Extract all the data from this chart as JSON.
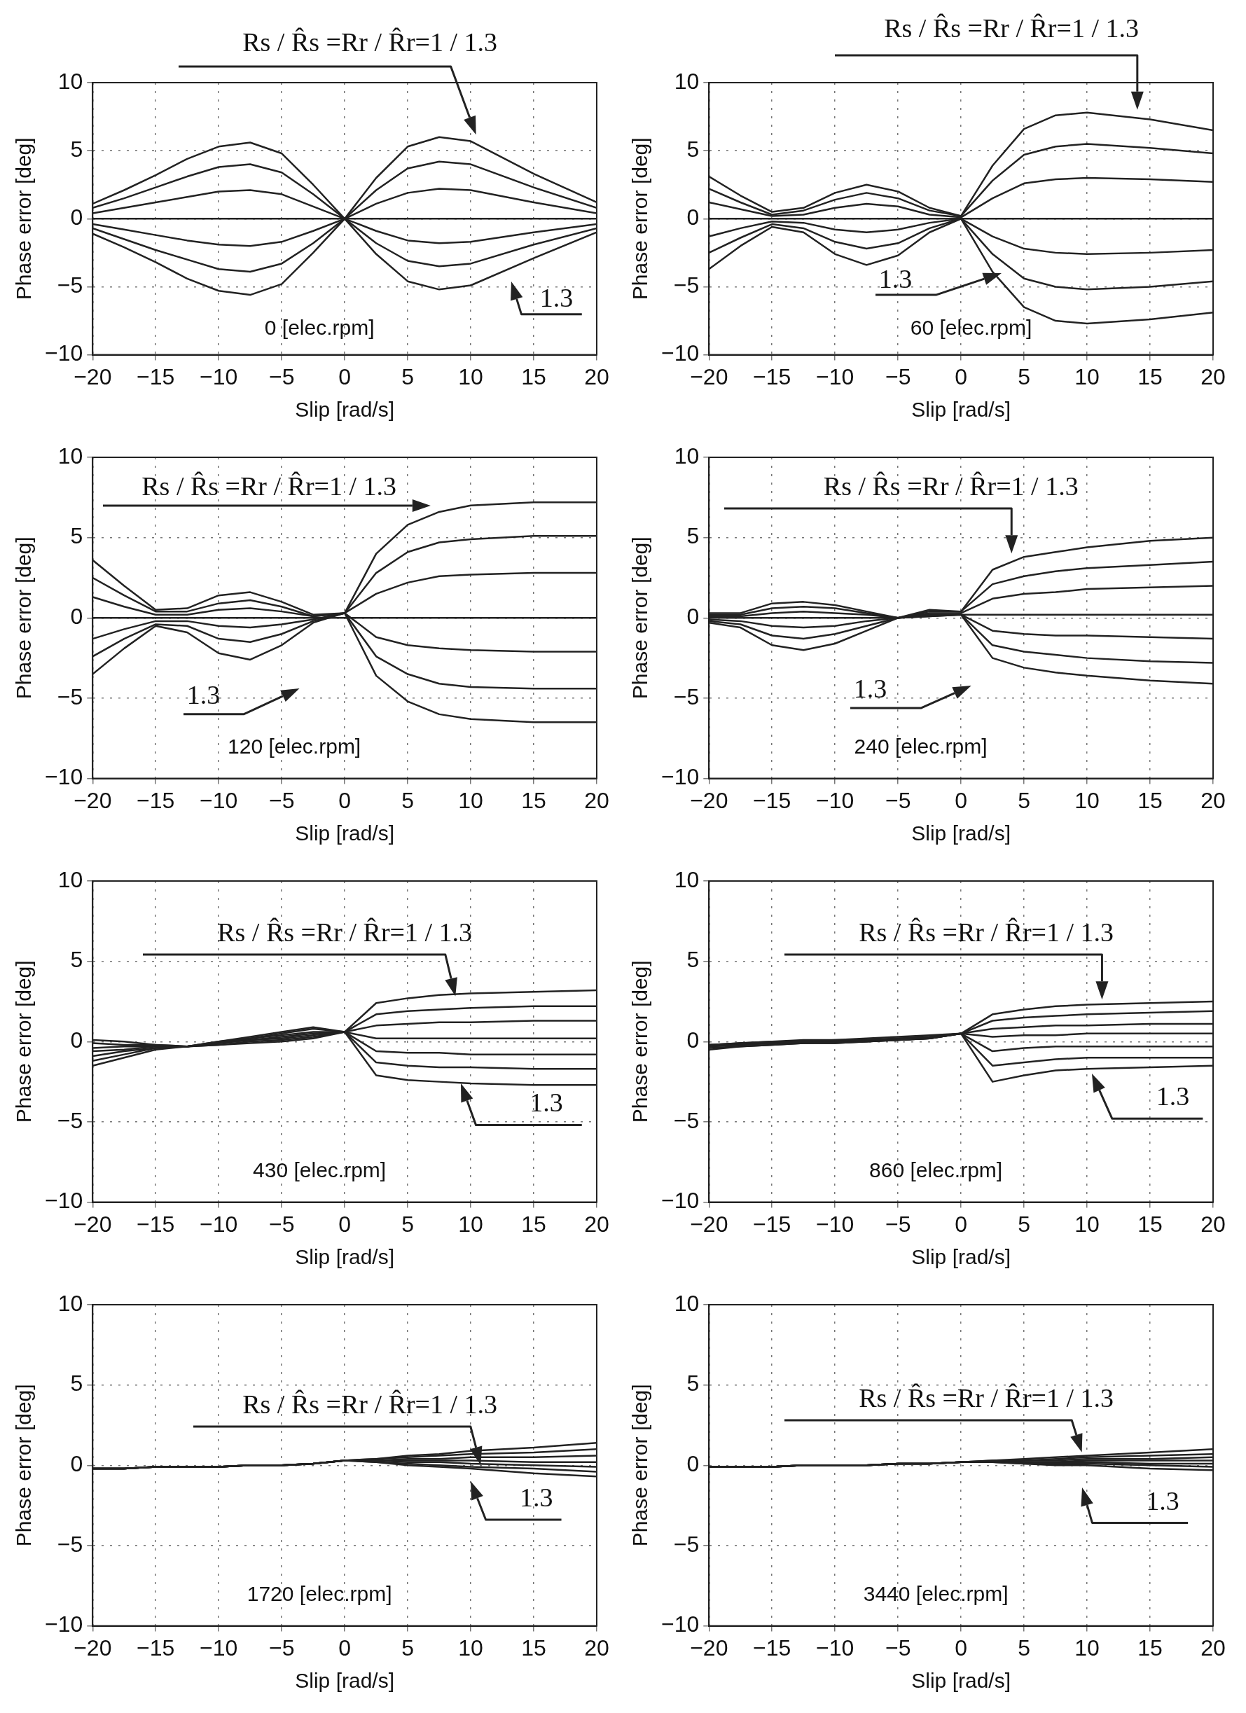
{
  "chart_data": [
    {
      "type": "line",
      "xlabel": "Slip [rad/s]",
      "ylabel": "Phase error [deg]",
      "xlim": [
        -20,
        20
      ],
      "ylim": [
        -10,
        10
      ],
      "xticks": [
        -20,
        -15,
        -10,
        -5,
        0,
        5,
        10,
        15,
        20
      ],
      "yticks": [
        -10,
        -5,
        0,
        5,
        10
      ],
      "grid": true,
      "marker": "none",
      "line_style": "solid",
      "annotations": [
        "Rs / R̂s =Rr / R̂r=1 / 1.3",
        "1.3",
        "0 [elec.rpm]"
      ],
      "x": [
        -20,
        -17.5,
        -15,
        -12.5,
        -10,
        -7.5,
        -5,
        -2.5,
        0,
        2.5,
        5,
        7.5,
        10,
        15,
        20
      ],
      "series": [
        {
          "color": "#222222",
          "values": [
            1.1,
            2.1,
            3.2,
            4.4,
            5.3,
            5.6,
            4.8,
            2.5,
            0,
            3,
            5.3,
            6,
            5.7,
            3.3,
            1.2
          ]
        },
        {
          "color": "#222222",
          "values": [
            0.8,
            1.5,
            2.3,
            3.1,
            3.8,
            4,
            3.4,
            1.8,
            0,
            2.1,
            3.7,
            4.2,
            4,
            2.3,
            0.8
          ]
        },
        {
          "color": "#222222",
          "values": [
            0.4,
            0.8,
            1.2,
            1.6,
            2,
            2.1,
            1.8,
            0.9,
            0,
            1.1,
            1.9,
            2.2,
            2.1,
            1.2,
            0.4
          ]
        },
        {
          "color": "#222222",
          "values": [
            0,
            0,
            0,
            0,
            0,
            0,
            0,
            0,
            0,
            0,
            0,
            0,
            0,
            0,
            0
          ]
        },
        {
          "color": "#222222",
          "values": [
            -0.4,
            -0.8,
            -1.2,
            -1.6,
            -1.9,
            -2,
            -1.7,
            -0.9,
            0,
            -0.9,
            -1.6,
            -1.8,
            -1.7,
            -1,
            -0.4
          ]
        },
        {
          "color": "#222222",
          "values": [
            -0.7,
            -1.5,
            -2.3,
            -3,
            -3.7,
            -3.9,
            -3.3,
            -1.8,
            0,
            -1.8,
            -3.1,
            -3.5,
            -3.3,
            -1.9,
            -0.7
          ]
        },
        {
          "color": "#222222",
          "values": [
            -1.1,
            -2.1,
            -3.2,
            -4.4,
            -5.3,
            -5.6,
            -4.8,
            -2.5,
            0,
            -2.6,
            -4.6,
            -5.2,
            -4.9,
            -2.9,
            -1
          ]
        }
      ]
    },
    {
      "type": "line",
      "xlabel": "Slip [rad/s]",
      "ylabel": "Phase error [deg]",
      "xlim": [
        -20,
        20
      ],
      "ylim": [
        -10,
        10
      ],
      "xticks": [
        -20,
        -15,
        -10,
        -5,
        0,
        5,
        10,
        15,
        20
      ],
      "yticks": [
        -10,
        -5,
        0,
        5,
        10
      ],
      "grid": true,
      "marker": "none",
      "line_style": "solid",
      "annotations": [
        "Rs / R̂s =Rr / R̂r=1 / 1.3",
        "1.3",
        "60 [elec.rpm]"
      ],
      "x": [
        -20,
        -17.5,
        -15,
        -12.5,
        -10,
        -7.5,
        -5,
        -2.5,
        0,
        2.5,
        5,
        7.5,
        10,
        15,
        20
      ],
      "series": [
        {
          "color": "#222222",
          "values": [
            3.1,
            1.7,
            0.5,
            0.8,
            1.9,
            2.5,
            2,
            0.8,
            0.2,
            3.9,
            6.6,
            7.6,
            7.8,
            7.3,
            6.5
          ]
        },
        {
          "color": "#222222",
          "values": [
            2.2,
            1.2,
            0.3,
            0.6,
            1.4,
            1.9,
            1.5,
            0.6,
            0.2,
            2.8,
            4.7,
            5.3,
            5.5,
            5.2,
            4.8
          ]
        },
        {
          "color": "#222222",
          "values": [
            1.2,
            0.7,
            0.2,
            0.3,
            0.8,
            1.1,
            0.9,
            0.3,
            0.1,
            1.5,
            2.6,
            2.9,
            3,
            2.9,
            2.7
          ]
        },
        {
          "color": "#222222",
          "values": [
            0,
            0,
            0,
            0,
            0,
            0,
            0,
            0,
            0,
            0,
            0,
            0,
            0,
            0,
            0
          ]
        },
        {
          "color": "#222222",
          "values": [
            -1.3,
            -0.7,
            -0.2,
            -0.3,
            -0.8,
            -1,
            -0.8,
            -0.3,
            0,
            -1.3,
            -2.2,
            -2.5,
            -2.6,
            -2.5,
            -2.3
          ]
        },
        {
          "color": "#222222",
          "values": [
            -2.5,
            -1.4,
            -0.4,
            -0.7,
            -1.7,
            -2.2,
            -1.8,
            -0.7,
            0,
            -2.6,
            -4.4,
            -5,
            -5.2,
            -5,
            -4.6
          ]
        },
        {
          "color": "#222222",
          "values": [
            -3.7,
            -2,
            -0.6,
            -1,
            -2.6,
            -3.4,
            -2.7,
            -1,
            0,
            -3.9,
            -6.5,
            -7.5,
            -7.7,
            -7.4,
            -6.9
          ]
        }
      ]
    },
    {
      "type": "line",
      "xlabel": "Slip [rad/s]",
      "ylabel": "Phase error [deg]",
      "xlim": [
        -20,
        20
      ],
      "ylim": [
        -10,
        10
      ],
      "xticks": [
        -20,
        -15,
        -10,
        -5,
        0,
        5,
        10,
        15,
        20
      ],
      "yticks": [
        -10,
        -5,
        0,
        5,
        10
      ],
      "grid": true,
      "marker": "none",
      "line_style": "solid",
      "annotations": [
        "Rs / R̂s =Rr / R̂r=1 / 1.3",
        "1.3",
        "120 [elec.rpm]"
      ],
      "x": [
        -20,
        -17.5,
        -15,
        -12.5,
        -10,
        -7.5,
        -5,
        -2.5,
        0,
        2.5,
        5,
        7.5,
        10,
        15,
        20
      ],
      "series": [
        {
          "color": "#222222",
          "values": [
            3.6,
            2,
            0.5,
            0.6,
            1.4,
            1.6,
            1,
            0.2,
            0.3,
            4,
            5.8,
            6.6,
            7,
            7.2,
            7.2
          ]
        },
        {
          "color": "#222222",
          "values": [
            2.5,
            1.4,
            0.4,
            0.4,
            0.9,
            1.1,
            0.7,
            0.1,
            0.3,
            2.8,
            4.1,
            4.7,
            4.9,
            5.1,
            5.1
          ]
        },
        {
          "color": "#222222",
          "values": [
            1.3,
            0.7,
            0.2,
            0.2,
            0.5,
            0.6,
            0.4,
            0.1,
            0.3,
            1.5,
            2.2,
            2.6,
            2.7,
            2.8,
            2.8
          ]
        },
        {
          "color": "#222222",
          "values": [
            0,
            0,
            0,
            0,
            0,
            0,
            0,
            0,
            0,
            0,
            0,
            0,
            0,
            0,
            0
          ]
        },
        {
          "color": "#222222",
          "values": [
            -1.3,
            -0.7,
            -0.2,
            -0.2,
            -0.5,
            -0.6,
            -0.4,
            -0.1,
            0.3,
            -1.2,
            -1.7,
            -1.9,
            -2,
            -2.1,
            -2.1
          ]
        },
        {
          "color": "#222222",
          "values": [
            -2.4,
            -1.3,
            -0.4,
            -0.5,
            -1.3,
            -1.5,
            -1,
            -0.2,
            0.3,
            -2.4,
            -3.5,
            -4.1,
            -4.3,
            -4.4,
            -4.4
          ]
        },
        {
          "color": "#222222",
          "values": [
            -3.5,
            -1.9,
            -0.5,
            -0.9,
            -2.2,
            -2.6,
            -1.7,
            -0.3,
            0.3,
            -3.6,
            -5.2,
            -6,
            -6.3,
            -6.5,
            -6.5
          ]
        }
      ]
    },
    {
      "type": "line",
      "xlabel": "Slip [rad/s]",
      "ylabel": "Phase error [deg]",
      "xlim": [
        -20,
        20
      ],
      "ylim": [
        -10,
        10
      ],
      "xticks": [
        -20,
        -15,
        -10,
        -5,
        0,
        5,
        10,
        15,
        20
      ],
      "yticks": [
        -10,
        -5,
        0,
        5,
        10
      ],
      "grid": true,
      "marker": "none",
      "line_style": "solid",
      "annotations": [
        "Rs / R̂s =Rr / R̂r=1 / 1.3",
        "1.3",
        "240 [elec.rpm]"
      ],
      "x": [
        -20,
        -17.5,
        -15,
        -12.5,
        -10,
        -7.5,
        -5,
        -2.5,
        0,
        2.5,
        5,
        7.5,
        10,
        15,
        20
      ],
      "series": [
        {
          "color": "#222222",
          "values": [
            0.3,
            0.3,
            0.9,
            1,
            0.8,
            0.4,
            0,
            0.5,
            0.4,
            3,
            3.8,
            4.1,
            4.4,
            4.8,
            5
          ]
        },
        {
          "color": "#222222",
          "values": [
            0.2,
            0.2,
            0.6,
            0.7,
            0.6,
            0.3,
            0,
            0.4,
            0.4,
            2.1,
            2.6,
            2.9,
            3.1,
            3.3,
            3.5
          ]
        },
        {
          "color": "#222222",
          "values": [
            0.1,
            0.1,
            0.3,
            0.4,
            0.3,
            0.2,
            0,
            0.3,
            0.3,
            1.2,
            1.5,
            1.6,
            1.8,
            1.9,
            2
          ]
        },
        {
          "color": "#222222",
          "values": [
            0,
            0,
            0,
            0,
            0,
            0,
            0,
            0.2,
            0.2,
            0.2,
            0.2,
            0.2,
            0.2,
            0.2,
            0.2
          ]
        },
        {
          "color": "#222222",
          "values": [
            -0.1,
            -0.2,
            -0.5,
            -0.6,
            -0.5,
            -0.2,
            0,
            0.2,
            0.2,
            -0.8,
            -1,
            -1.1,
            -1.1,
            -1.2,
            -1.3
          ]
        },
        {
          "color": "#222222",
          "values": [
            -0.2,
            -0.4,
            -1.1,
            -1.3,
            -1,
            -0.5,
            0,
            0.1,
            0.2,
            -1.7,
            -2.1,
            -2.3,
            -2.5,
            -2.7,
            -2.8
          ]
        },
        {
          "color": "#222222",
          "values": [
            -0.3,
            -0.6,
            -1.7,
            -2,
            -1.6,
            -0.8,
            0,
            0.1,
            0.2,
            -2.5,
            -3.1,
            -3.4,
            -3.6,
            -3.9,
            -4.1
          ]
        }
      ]
    },
    {
      "type": "line",
      "xlabel": "Slip [rad/s]",
      "ylabel": "Phase error [deg]",
      "xlim": [
        -20,
        20
      ],
      "ylim": [
        -10,
        10
      ],
      "xticks": [
        -20,
        -15,
        -10,
        -5,
        0,
        5,
        10,
        15,
        20
      ],
      "yticks": [
        -10,
        -5,
        0,
        5,
        10
      ],
      "grid": true,
      "marker": "none",
      "line_style": "solid",
      "annotations": [
        "Rs / R̂s =Rr / R̂r=1 / 1.3",
        "1.3",
        "430 [elec.rpm]"
      ],
      "x": [
        -20,
        -17.5,
        -15,
        -12.5,
        -10,
        -7.5,
        -5,
        -2.5,
        0,
        2.5,
        5,
        7.5,
        10,
        15,
        20
      ],
      "series": [
        {
          "color": "#222222",
          "values": [
            -1.5,
            -1,
            -0.5,
            -0.3,
            0,
            0.3,
            0.6,
            0.9,
            0.6,
            2.4,
            2.7,
            2.9,
            3,
            3.1,
            3.2
          ]
        },
        {
          "color": "#222222",
          "values": [
            -1.2,
            -0.8,
            -0.4,
            -0.3,
            0,
            0.2,
            0.5,
            0.8,
            0.6,
            1.7,
            1.9,
            2,
            2.1,
            2.2,
            2.2
          ]
        },
        {
          "color": "#222222",
          "values": [
            -0.9,
            -0.6,
            -0.4,
            -0.3,
            -0.1,
            0.2,
            0.4,
            0.6,
            0.6,
            1,
            1.1,
            1.2,
            1.2,
            1.3,
            1.3
          ]
        },
        {
          "color": "#222222",
          "values": [
            -0.6,
            -0.5,
            -0.3,
            -0.3,
            -0.1,
            0.1,
            0.3,
            0.5,
            0.6,
            0.2,
            0.2,
            0.2,
            0.2,
            0.2,
            0.2
          ]
        },
        {
          "color": "#222222",
          "values": [
            -0.4,
            -0.3,
            -0.3,
            -0.3,
            -0.1,
            0.1,
            0.2,
            0.4,
            0.6,
            -0.6,
            -0.7,
            -0.7,
            -0.8,
            -0.8,
            -0.8
          ]
        },
        {
          "color": "#222222",
          "values": [
            -0.1,
            -0.2,
            -0.2,
            -0.3,
            -0.2,
            0,
            0.1,
            0.3,
            0.6,
            -1.3,
            -1.5,
            -1.6,
            -1.6,
            -1.7,
            -1.7
          ]
        },
        {
          "color": "#222222",
          "values": [
            0.1,
            0,
            -0.2,
            -0.3,
            -0.2,
            -0.1,
            0,
            0.2,
            0.6,
            -2.1,
            -2.4,
            -2.5,
            -2.6,
            -2.7,
            -2.7
          ]
        }
      ]
    },
    {
      "type": "line",
      "xlabel": "Slip [rad/s]",
      "ylabel": "Phase error [deg]",
      "xlim": [
        -20,
        20
      ],
      "ylim": [
        -10,
        10
      ],
      "xticks": [
        -20,
        -15,
        -10,
        -5,
        0,
        5,
        10,
        15,
        20
      ],
      "yticks": [
        -10,
        -5,
        0,
        5,
        10
      ],
      "grid": true,
      "marker": "none",
      "line_style": "solid",
      "annotations": [
        "Rs / R̂s =Rr / R̂r=1 / 1.3",
        "1.3",
        "860 [elec.rpm]"
      ],
      "x": [
        -20,
        -17.5,
        -15,
        -12.5,
        -10,
        -7.5,
        -5,
        -2.5,
        0,
        2.5,
        5,
        7.5,
        10,
        15,
        20
      ],
      "series": [
        {
          "color": "#222222",
          "values": [
            -0.2,
            -0.1,
            0,
            0.1,
            0.1,
            0.2,
            0.3,
            0.4,
            0.5,
            1.7,
            2,
            2.2,
            2.3,
            2.4,
            2.5
          ]
        },
        {
          "color": "#222222",
          "values": [
            -0.2,
            -0.1,
            0,
            0,
            0.1,
            0.1,
            0.2,
            0.3,
            0.5,
            1.3,
            1.5,
            1.6,
            1.7,
            1.8,
            1.9
          ]
        },
        {
          "color": "#222222",
          "values": [
            -0.3,
            -0.1,
            -0.1,
            0,
            0,
            0.1,
            0.2,
            0.3,
            0.5,
            0.8,
            0.9,
            1,
            1,
            1.1,
            1.1
          ]
        },
        {
          "color": "#222222",
          "values": [
            -0.3,
            -0.2,
            -0.1,
            0,
            0,
            0.1,
            0.1,
            0.2,
            0.5,
            0.3,
            0.4,
            0.4,
            0.5,
            0.5,
            0.5
          ]
        },
        {
          "color": "#222222",
          "values": [
            -0.3,
            -0.2,
            -0.1,
            -0.1,
            0,
            0,
            0.1,
            0.2,
            0.5,
            -0.6,
            -0.4,
            -0.3,
            -0.3,
            -0.3,
            -0.3
          ]
        },
        {
          "color": "#222222",
          "values": [
            -0.4,
            -0.3,
            -0.2,
            -0.1,
            -0.1,
            0,
            0.1,
            0.2,
            0.5,
            -1.5,
            -1.3,
            -1.1,
            -1,
            -1,
            -1
          ]
        },
        {
          "color": "#222222",
          "values": [
            -0.5,
            -0.3,
            -0.2,
            -0.1,
            -0.1,
            0,
            0.1,
            0.2,
            0.5,
            -2.5,
            -2.1,
            -1.8,
            -1.7,
            -1.6,
            -1.5
          ]
        }
      ]
    },
    {
      "type": "line",
      "xlabel": "Slip [rad/s]",
      "ylabel": "Phase error [deg]",
      "xlim": [
        -20,
        20
      ],
      "ylim": [
        -10,
        10
      ],
      "xticks": [
        -20,
        -15,
        -10,
        -5,
        0,
        5,
        10,
        15,
        20
      ],
      "yticks": [
        -10,
        -5,
        0,
        5,
        10
      ],
      "grid": true,
      "marker": "none",
      "line_style": "solid",
      "annotations": [
        "Rs / R̂s =Rr / R̂r=1 / 1.3",
        "1.3",
        "1720 [elec.rpm]"
      ],
      "x": [
        -20,
        -17.5,
        -15,
        -12.5,
        -10,
        -7.5,
        -5,
        -2.5,
        0,
        2.5,
        5,
        7.5,
        10,
        15,
        20
      ],
      "series": [
        {
          "color": "#222222",
          "values": [
            -0.2,
            -0.2,
            -0.1,
            -0.1,
            -0.1,
            0,
            0,
            0.1,
            0.3,
            0.4,
            0.6,
            0.7,
            0.9,
            1.1,
            1.4
          ]
        },
        {
          "color": "#222222",
          "values": [
            -0.2,
            -0.2,
            -0.1,
            -0.1,
            -0.1,
            0,
            0,
            0.1,
            0.3,
            0.4,
            0.5,
            0.6,
            0.7,
            0.8,
            1
          ]
        },
        {
          "color": "#222222",
          "values": [
            -0.2,
            -0.2,
            -0.1,
            -0.1,
            -0.1,
            0,
            0,
            0.1,
            0.3,
            0.3,
            0.4,
            0.4,
            0.5,
            0.5,
            0.6
          ]
        },
        {
          "color": "#222222",
          "values": [
            -0.2,
            -0.2,
            -0.1,
            -0.1,
            -0.1,
            0,
            0,
            0.1,
            0.3,
            0.3,
            0.3,
            0.3,
            0.3,
            0.2,
            0.2
          ]
        },
        {
          "color": "#222222",
          "values": [
            -0.2,
            -0.2,
            -0.1,
            -0.1,
            -0.1,
            0,
            0,
            0.1,
            0.3,
            0.3,
            0.2,
            0.2,
            0.1,
            0,
            -0.1
          ]
        },
        {
          "color": "#222222",
          "values": [
            -0.2,
            -0.2,
            -0.1,
            -0.1,
            -0.1,
            0,
            0,
            0.1,
            0.3,
            0.2,
            0.1,
            0,
            -0.1,
            -0.2,
            -0.4
          ]
        },
        {
          "color": "#222222",
          "values": [
            -0.2,
            -0.2,
            -0.1,
            -0.1,
            -0.1,
            0,
            0,
            0.1,
            0.3,
            0.2,
            0,
            -0.1,
            -0.2,
            -0.5,
            -0.7
          ]
        }
      ]
    },
    {
      "type": "line",
      "xlabel": "Slip [rad/s]",
      "ylabel": "Phase error [deg]",
      "xlim": [
        -20,
        20
      ],
      "ylim": [
        -10,
        10
      ],
      "xticks": [
        -20,
        -15,
        -10,
        -5,
        0,
        5,
        10,
        15,
        20
      ],
      "yticks": [
        -10,
        -5,
        0,
        5,
        10
      ],
      "grid": true,
      "marker": "none",
      "line_style": "solid",
      "annotations": [
        "Rs / R̂s =Rr / R̂r=1 / 1.3",
        "1.3",
        "3440 [elec.rpm]"
      ],
      "x": [
        -20,
        -17.5,
        -15,
        -12.5,
        -10,
        -7.5,
        -5,
        -2.5,
        0,
        2.5,
        5,
        7.5,
        10,
        15,
        20
      ],
      "series": [
        {
          "color": "#222222",
          "values": [
            -0.1,
            -0.1,
            -0.1,
            0,
            0,
            0,
            0.1,
            0.1,
            0.2,
            0.3,
            0.4,
            0.5,
            0.6,
            0.8,
            1
          ]
        },
        {
          "color": "#222222",
          "values": [
            -0.1,
            -0.1,
            -0.1,
            0,
            0,
            0,
            0.1,
            0.1,
            0.2,
            0.3,
            0.3,
            0.4,
            0.5,
            0.6,
            0.7
          ]
        },
        {
          "color": "#222222",
          "values": [
            -0.1,
            -0.1,
            -0.1,
            0,
            0,
            0,
            0.1,
            0.1,
            0.2,
            0.2,
            0.3,
            0.3,
            0.4,
            0.4,
            0.5
          ]
        },
        {
          "color": "#222222",
          "values": [
            -0.1,
            -0.1,
            -0.1,
            0,
            0,
            0,
            0.1,
            0.1,
            0.2,
            0.2,
            0.2,
            0.2,
            0.3,
            0.3,
            0.3
          ]
        },
        {
          "color": "#222222",
          "values": [
            -0.1,
            -0.1,
            -0.1,
            0,
            0,
            0,
            0.1,
            0.1,
            0.2,
            0.2,
            0.2,
            0.2,
            0.2,
            0.1,
            0.1
          ]
        },
        {
          "color": "#222222",
          "values": [
            -0.1,
            -0.1,
            -0.1,
            0,
            0,
            0,
            0.1,
            0.1,
            0.2,
            0.2,
            0.1,
            0.1,
            0.1,
            0,
            -0.1
          ]
        },
        {
          "color": "#222222",
          "values": [
            -0.1,
            -0.1,
            -0.1,
            0,
            0,
            0,
            0.1,
            0.1,
            0.2,
            0.2,
            0.1,
            0,
            0,
            -0.2,
            -0.3
          ]
        }
      ]
    }
  ]
}
